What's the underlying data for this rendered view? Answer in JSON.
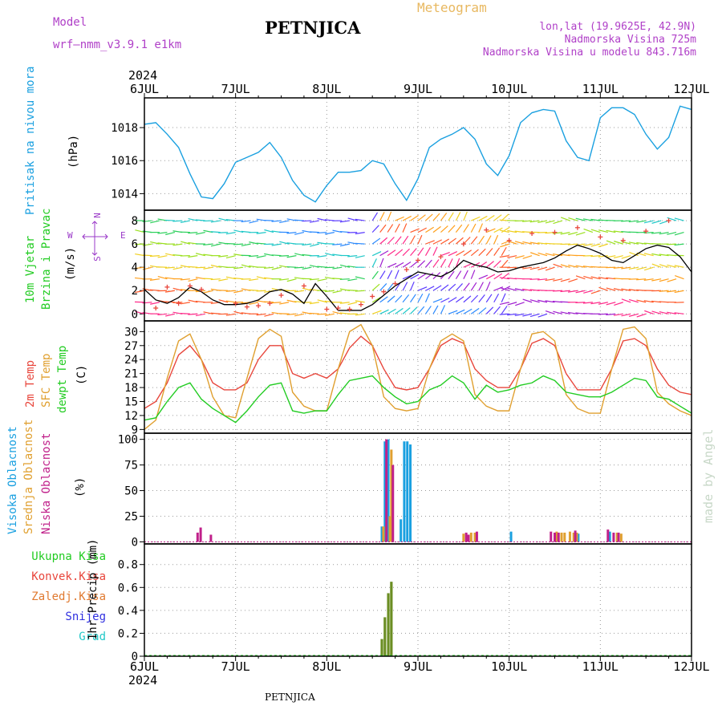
{
  "header": {
    "model_label": "Model",
    "model_name": "wrf—nmm_v3.9.1  e1km",
    "title": "PETNJICA",
    "meteogram": "Meteogram",
    "lonlat": "lon,lat (19.9625E, 42.9N)",
    "altitude": "Nadmorska Visina 725m",
    "model_altitude": "Nadmorska Visina u modelu 843.716m",
    "year_top": "2024",
    "year_bottom": "2024",
    "footer_title": "PETNJICA",
    "credit": "made by Angel"
  },
  "colors": {
    "pressure": "#1aa0e0",
    "temp2m": "#e8463c",
    "sfc": "#e0a030",
    "dewpt": "#22cc22",
    "wind_line": "#000000",
    "gust": "#e8463c",
    "precip": "#6b8e23",
    "high_cloud": "#1aa0e0",
    "mid_cloud": "#e0a030",
    "low_cloud": "#c0208a",
    "wind_label": "#9a38c8"
  },
  "chart_data": [
    {
      "type": "line",
      "panel": "pressure",
      "ylabel_lines": [
        "Pritisak na nivou mora",
        "(hPa)"
      ],
      "yticks": [
        1014,
        1016,
        1018
      ],
      "ylim": [
        1013.0,
        1019.8
      ],
      "x_days": [
        "6JUL",
        "7JUL",
        "8JUL",
        "9JUL",
        "10JUL",
        "11JUL",
        "12JUL"
      ],
      "xlim_hours": [
        0,
        144
      ],
      "series": [
        {
          "hours": [
            0,
            3,
            6,
            9,
            12,
            15,
            18,
            21,
            24,
            27,
            30,
            33,
            36,
            39,
            42,
            45,
            48,
            51,
            54,
            57,
            60,
            63,
            66,
            69,
            72,
            75,
            78,
            81,
            84,
            87,
            90,
            93,
            96,
            99,
            102,
            105,
            108,
            111,
            114,
            117,
            120,
            123,
            126,
            129,
            132,
            135,
            138,
            141,
            144
          ],
          "values": [
            1018.2,
            1018.3,
            1017.6,
            1016.8,
            1015.2,
            1013.8,
            1013.7,
            1014.6,
            1015.9,
            1016.2,
            1016.5,
            1017.1,
            1016.2,
            1014.8,
            1013.9,
            1013.5,
            1014.5,
            1015.3,
            1015.3,
            1015.4,
            1016.0,
            1015.8,
            1014.6,
            1013.6,
            1014.9,
            1016.8,
            1017.3,
            1017.6,
            1018.0,
            1017.3,
            1015.8,
            1015.1,
            1016.3,
            1018.3,
            1018.9,
            1019.1,
            1019.0,
            1017.2,
            1016.2,
            1016.0,
            1018.6,
            1019.2,
            1019.2,
            1018.8,
            1017.6,
            1016.7,
            1017.4,
            1019.3,
            1019.1
          ]
        }
      ]
    },
    {
      "type": "line",
      "panel": "wind",
      "ylabel_lines": [
        "10m Vjetar",
        "Brzina i Pravac",
        "(m/s)"
      ],
      "compass": {
        "n": "N",
        "w": "W",
        "e": "E",
        "s": "S"
      },
      "yticks": [
        0,
        2,
        4,
        6,
        8
      ],
      "ylim": [
        -0.6,
        8.9
      ],
      "series": [
        {
          "name": "speed",
          "hours": [
            0,
            3,
            6,
            9,
            12,
            15,
            18,
            21,
            24,
            27,
            30,
            33,
            36,
            39,
            42,
            45,
            48,
            51,
            54,
            57,
            60,
            63,
            66,
            69,
            72,
            75,
            78,
            81,
            84,
            87,
            90,
            93,
            96,
            99,
            102,
            105,
            108,
            111,
            114,
            117,
            120,
            123,
            126,
            129,
            132,
            135,
            138,
            141,
            144
          ],
          "values": [
            2.1,
            1.2,
            0.9,
            1.4,
            2.3,
            1.9,
            1.2,
            0.8,
            0.8,
            0.9,
            1.2,
            1.9,
            2.1,
            1.7,
            0.9,
            2.6,
            1.5,
            0.3,
            0.3,
            0.3,
            0.8,
            1.6,
            2.4,
            3.0,
            3.6,
            3.4,
            3.2,
            3.7,
            4.6,
            4.2,
            4.0,
            3.6,
            3.7,
            4.0,
            4.2,
            4.4,
            4.8,
            5.4,
            5.9,
            5.6,
            5.2,
            4.6,
            4.4,
            5.0,
            5.6,
            5.9,
            5.7,
            4.9,
            3.6
          ]
        },
        {
          "name": "gust",
          "hours": [
            3,
            6,
            9,
            12,
            15,
            24,
            27,
            30,
            33,
            36,
            42,
            48,
            51,
            54,
            57,
            60,
            63,
            66,
            69,
            72,
            78,
            84,
            90,
            96,
            102,
            108,
            114,
            120,
            126,
            132,
            138
          ],
          "values": [
            0.5,
            2.3,
            0.9,
            2.4,
            2.1,
            0.9,
            0.6,
            0.7,
            0.9,
            1.6,
            2.4,
            0.4,
            0.5,
            0.4,
            0.8,
            1.5,
            1.9,
            2.6,
            3.8,
            4.6,
            4.9,
            6.0,
            7.2,
            6.3,
            6.9,
            7.0,
            7.4,
            6.6,
            6.3,
            7.1,
            8.0
          ]
        }
      ]
    },
    {
      "type": "line",
      "panel": "temperature",
      "ylabel_lines": [
        "2m Temp",
        "SFC Temp",
        "dewpt Temp",
        "(C)"
      ],
      "yticks": [
        9,
        12,
        15,
        18,
        21,
        24,
        27,
        30
      ],
      "ylim": [
        8.2,
        32.3
      ],
      "series": [
        {
          "name": "2m Temp",
          "hours": [
            0,
            3,
            6,
            9,
            12,
            15,
            18,
            21,
            24,
            27,
            30,
            33,
            36,
            39,
            42,
            45,
            48,
            51,
            54,
            57,
            60,
            63,
            66,
            69,
            72,
            75,
            78,
            81,
            84,
            87,
            90,
            93,
            96,
            99,
            102,
            105,
            108,
            111,
            114,
            117,
            120,
            123,
            126,
            129,
            132,
            135,
            138,
            141,
            144
          ],
          "values": [
            13.5,
            15.0,
            19.0,
            25.0,
            27.0,
            24.0,
            19.0,
            17.5,
            17.5,
            19.0,
            24.0,
            27.0,
            27.0,
            21.0,
            20.0,
            21.0,
            20.0,
            22.0,
            26.5,
            29.0,
            27.0,
            22.0,
            18.0,
            17.5,
            18.0,
            22.0,
            27.0,
            28.5,
            27.5,
            22.0,
            19.5,
            18.0,
            18.0,
            22.0,
            27.5,
            28.5,
            27.0,
            21.0,
            17.5,
            17.5,
            17.5,
            22.0,
            28.0,
            28.5,
            27.0,
            22.0,
            18.5,
            17.0,
            16.5
          ]
        },
        {
          "name": "SFC Temp",
          "hours": [
            0,
            3,
            6,
            9,
            12,
            15,
            18,
            21,
            24,
            27,
            30,
            33,
            36,
            39,
            42,
            45,
            48,
            51,
            54,
            57,
            60,
            63,
            66,
            69,
            72,
            75,
            78,
            81,
            84,
            87,
            90,
            93,
            96,
            99,
            102,
            105,
            108,
            111,
            114,
            117,
            120,
            123,
            126,
            129,
            132,
            135,
            138,
            141,
            144
          ],
          "values": [
            9.0,
            11.0,
            20.0,
            28.0,
            29.5,
            24.0,
            16.0,
            12.0,
            11.5,
            20.0,
            28.5,
            30.5,
            29.0,
            17.0,
            14.0,
            13.0,
            13.0,
            22.0,
            30.0,
            31.5,
            27.0,
            16.0,
            13.5,
            13.0,
            13.5,
            22.0,
            28.0,
            29.5,
            28.0,
            16.5,
            14.0,
            13.0,
            13.0,
            22.0,
            29.5,
            30.0,
            28.0,
            16.5,
            13.5,
            12.5,
            12.5,
            22.0,
            30.5,
            31.0,
            28.5,
            17.0,
            14.5,
            13.0,
            12.0
          ]
        },
        {
          "name": "dewpt Temp",
          "hours": [
            0,
            3,
            6,
            9,
            12,
            15,
            18,
            21,
            24,
            27,
            30,
            33,
            36,
            39,
            42,
            45,
            48,
            51,
            54,
            57,
            60,
            63,
            66,
            69,
            72,
            75,
            78,
            81,
            84,
            87,
            90,
            93,
            96,
            99,
            102,
            105,
            108,
            111,
            114,
            117,
            120,
            123,
            126,
            129,
            132,
            135,
            138,
            141,
            144
          ],
          "values": [
            11.0,
            11.5,
            15.0,
            18.0,
            19.0,
            15.5,
            13.5,
            12.0,
            10.5,
            13.0,
            16.0,
            18.5,
            19.0,
            13.0,
            12.5,
            13.0,
            13.0,
            16.5,
            19.5,
            20.0,
            20.5,
            18.0,
            16.0,
            14.5,
            15.0,
            17.5,
            18.5,
            20.5,
            19.0,
            15.5,
            18.5,
            17.0,
            17.5,
            18.5,
            19.0,
            20.5,
            19.5,
            17.0,
            16.5,
            16.0,
            16.0,
            17.0,
            18.5,
            20.0,
            19.5,
            16.0,
            15.5,
            14.0,
            12.5
          ]
        }
      ]
    },
    {
      "type": "bar",
      "panel": "cloud",
      "ylabel_lines": [
        "Visoka Oblacnost",
        "Srednja Oblacnost",
        "Niska Oblacnost",
        "(%)"
      ],
      "yticks": [
        0,
        25,
        50,
        75,
        100
      ],
      "ylim": [
        -2,
        106
      ],
      "series": [
        {
          "name": "Visoka Oblacnost",
          "hours": [
            62.5,
            63.3,
            64.2,
            67.5,
            68.4,
            69.2,
            70.0,
            96.5,
            114.2,
            122.5
          ],
          "values": [
            15,
            98,
            100,
            22,
            98,
            98,
            95,
            10,
            8,
            10
          ]
        },
        {
          "name": "Srednja Oblacnost",
          "hours": [
            62.9,
            64.6,
            65.0,
            84.0,
            86.0,
            87.0,
            108.5,
            109.8,
            110.6,
            112.0,
            113.0,
            113.8,
            124.4,
            125.5
          ],
          "values": [
            15,
            25,
            90,
            8,
            9,
            9,
            10,
            9,
            9,
            10,
            9,
            9,
            9,
            8
          ]
        },
        {
          "name": "Niska Oblacnost",
          "hours": [
            14.0,
            14.8,
            17.5,
            63.7,
            65.4,
            84.7,
            85.3,
            87.5,
            107.0,
            108.0,
            109.0,
            113.4,
            122.0,
            123.5,
            124.8
          ],
          "values": [
            9,
            14,
            7,
            100,
            75,
            9,
            7,
            10,
            10,
            9,
            9,
            11,
            12,
            9,
            9
          ]
        }
      ]
    },
    {
      "type": "bar",
      "panel": "precip",
      "ylabel_lines": [
        "1hr Precip (mm)"
      ],
      "legend": [
        "Ukupna Kisa",
        "Konvek.Kisa",
        "Zaledj.Kisa",
        "Snijeg",
        "Grad"
      ],
      "legend_colors": [
        "#22cc22",
        "#e8463c",
        "#e07a30",
        "#3030e0",
        "#22c8c8"
      ],
      "yticks": [
        0,
        0.2,
        0.4,
        0.6,
        0.8
      ],
      "ylim": [
        0,
        0.98
      ],
      "series": [
        {
          "name": "Ukupna Kisa",
          "hours": [
            62.5,
            63.3,
            64.2,
            65.0
          ],
          "values": [
            0.15,
            0.34,
            0.55,
            0.65
          ]
        }
      ]
    }
  ]
}
